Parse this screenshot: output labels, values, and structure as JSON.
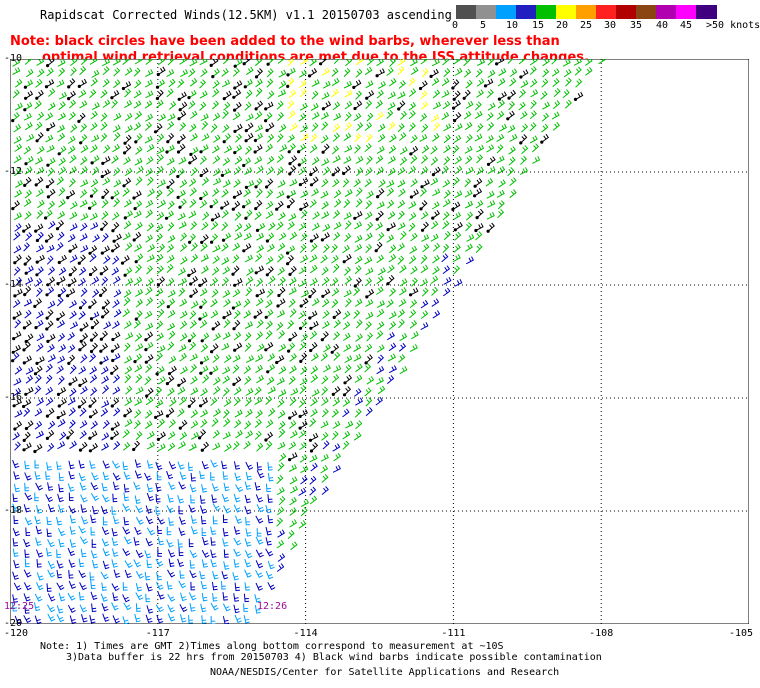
{
  "title": "Rapidscat Corrected Winds(12.5KM) v1.1 20150703 ascending",
  "note_lines": [
    "Note: black circles have been added to the wind barbs, wherever less than",
    "optimal wind retrieval conditions are met due to the ISS attitude changes."
  ],
  "legend": {
    "unit": ">50 knots",
    "labels": [
      "0",
      "5",
      "10",
      "15",
      "20",
      "25",
      "30",
      "35",
      "40",
      "45",
      ">50 knots"
    ],
    "colors": [
      "#505050",
      "#909090",
      "#00a0ff",
      "#2020c0",
      "#00c000",
      "#ffff00",
      "#ffa000",
      "#ff2020",
      "#b00000",
      "#8b4513",
      "#b000b0",
      "#ff00ff",
      "#400080"
    ]
  },
  "map": {
    "lat_labels": [
      "-10",
      "-12",
      "-14",
      "-16",
      "-18",
      "-20"
    ],
    "lon_labels": [
      "-120",
      "-117",
      "-114",
      "-111",
      "-108",
      "-105"
    ],
    "lat_range": [
      -20,
      -10
    ],
    "lon_range": [
      -120,
      -105
    ],
    "time_labels": [
      "12:25",
      "12:26"
    ],
    "barb_colors": {
      "light_blue": "#00a0ff",
      "dark_blue": "#0000c0",
      "green": "#00c000",
      "yellow": "#ffff00",
      "black": "#000000"
    }
  },
  "footnotes": [
    "Note: 1) Times are GMT 2)Times along bottom correspond to measurement at ~10S",
    "3)Data buffer is 22 hrs from 20150703 4) Black wind barbs indicate possible contamination"
  ],
  "credit": "NOAA/NESDIS/Center for Satellite Applications and Research"
}
